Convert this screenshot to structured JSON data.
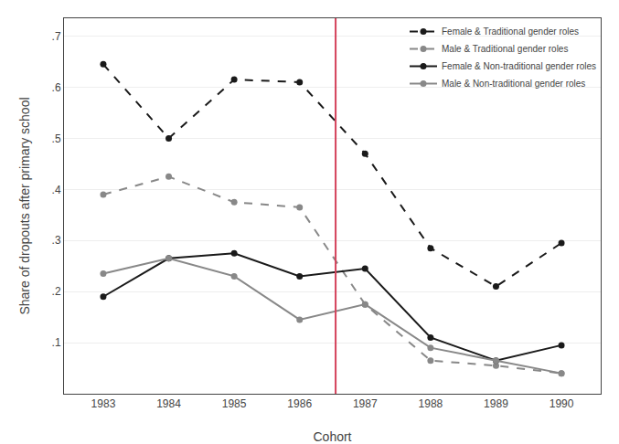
{
  "chart_data": {
    "type": "line",
    "x": [
      1983,
      1984,
      1985,
      1986,
      1987,
      1988,
      1989,
      1990
    ],
    "series": [
      {
        "name": "Female & Traditional gender roles",
        "color": "#1a1a1a",
        "line_style": "dashed",
        "marker": "circle",
        "values": [
          0.645,
          0.5,
          0.615,
          0.61,
          0.47,
          0.285,
          0.21,
          0.295
        ]
      },
      {
        "name": "Male & Traditional gender roles",
        "color": "#888888",
        "line_style": "dashed",
        "marker": "circle",
        "values": [
          0.39,
          0.425,
          0.375,
          0.365,
          0.175,
          0.065,
          0.055,
          0.04
        ]
      },
      {
        "name": "Female & Non-traditional gender roles",
        "color": "#1a1a1a",
        "line_style": "solid",
        "marker": "circle",
        "values": [
          0.19,
          0.265,
          0.275,
          0.23,
          0.245,
          0.11,
          0.065,
          0.095
        ]
      },
      {
        "name": "Male & Non-traditional gender roles",
        "color": "#888888",
        "line_style": "solid",
        "marker": "circle",
        "values": [
          0.235,
          0.265,
          0.23,
          0.145,
          0.175,
          0.09,
          0.065,
          0.04
        ]
      }
    ],
    "vlines": [
      {
        "x": 1986.55,
        "color": "#d4415a"
      }
    ],
    "x_label": "Cohort",
    "y_label": "Share of dropouts after primary school",
    "xlim": [
      1982.4,
      1990.6
    ],
    "xticks": [
      1983,
      1984,
      1985,
      1986,
      1987,
      1988,
      1989,
      1990
    ],
    "ylim": [
      0,
      0.735
    ],
    "yticks": [
      {
        "value": 0.1,
        "label": ".1"
      },
      {
        "value": 0.2,
        "label": ".2"
      },
      {
        "value": 0.3,
        "label": ".3"
      },
      {
        "value": 0.4,
        "label": ".4"
      },
      {
        "value": 0.5,
        "label": ".5"
      },
      {
        "value": 0.6,
        "label": ".6"
      },
      {
        "value": 0.7,
        "label": ".7"
      }
    ],
    "grid": "y",
    "legend": "upper right"
  }
}
